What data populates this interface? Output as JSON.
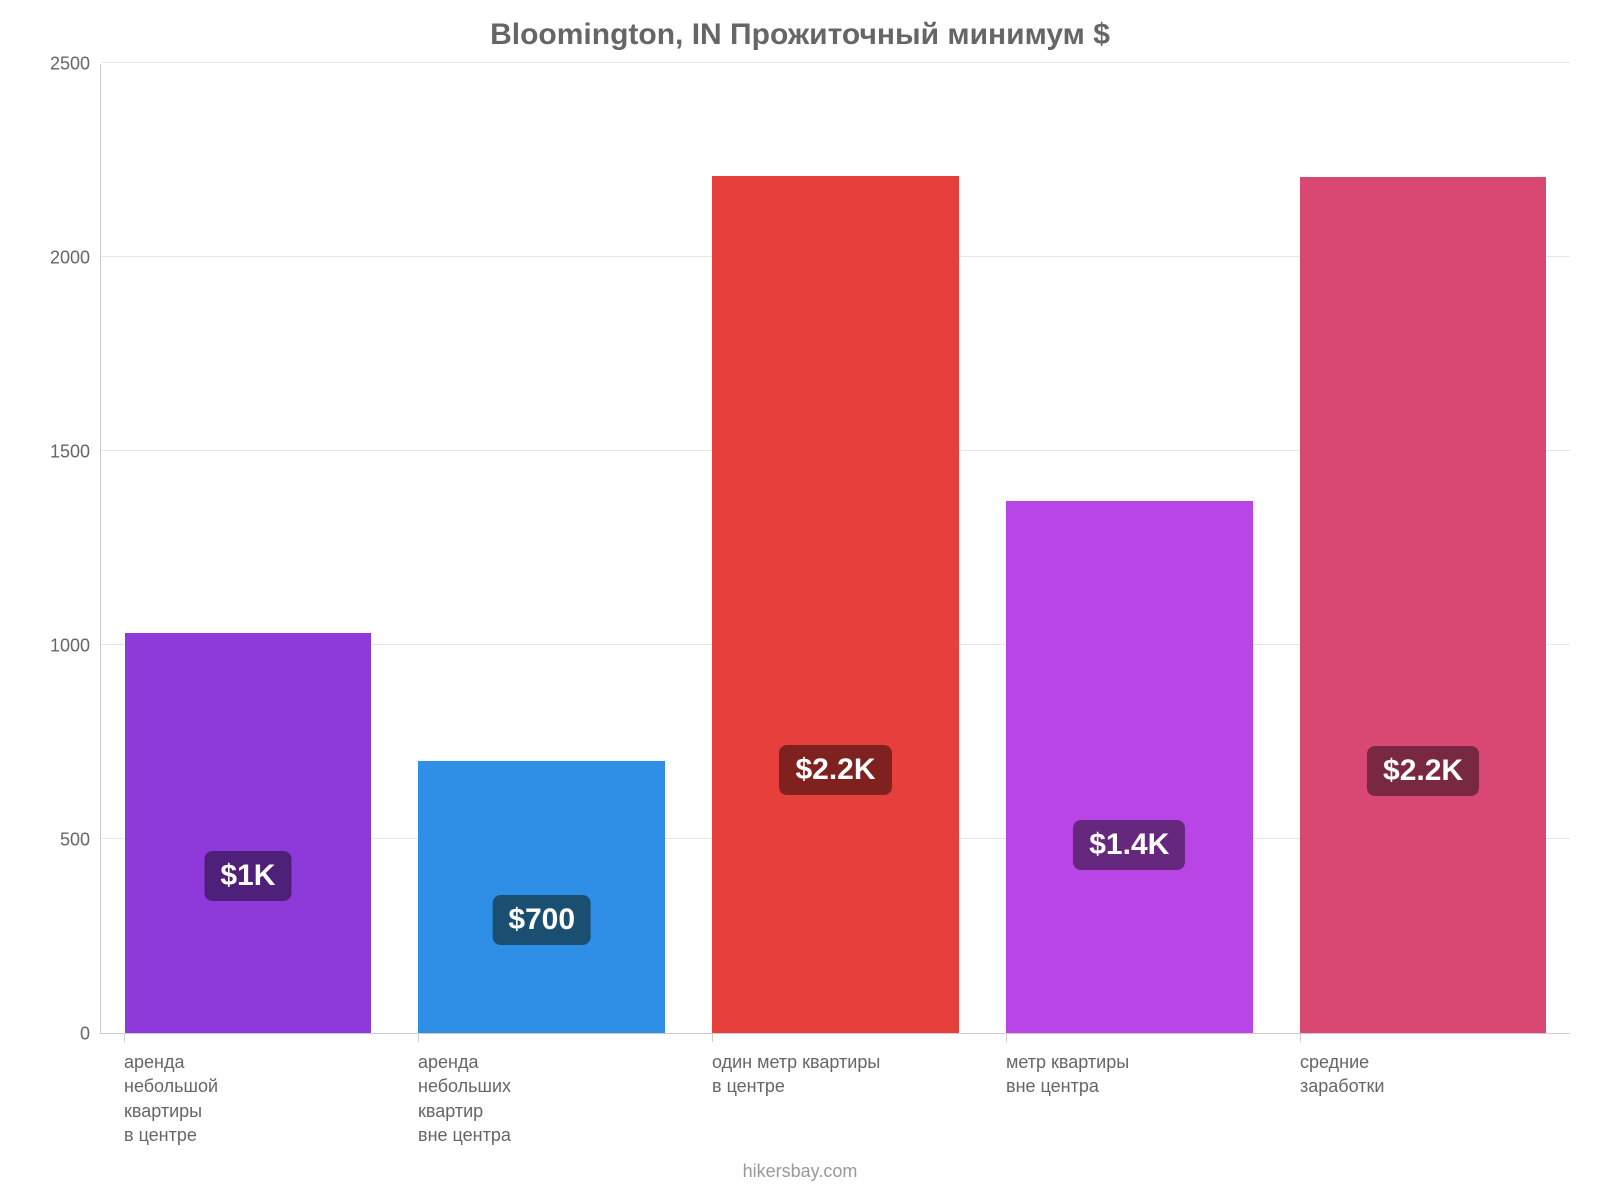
{
  "chart": {
    "type": "bar",
    "title": "Bloomington, IN Прожиточный минимум $",
    "title_color": "#666666",
    "title_fontsize": 30,
    "background_color": "#ffffff",
    "axis_color": "#cccccc",
    "grid_color": "#e6e6e6",
    "tick_label_color": "#666666",
    "tick_label_fontsize": 18,
    "ylim": [
      0,
      2500
    ],
    "ytick_step": 500,
    "yticks": [
      0,
      500,
      1000,
      1500,
      2000,
      2500
    ],
    "bar_width_pct": 84,
    "value_badge_fontsize": 30,
    "value_badge_radius": 8,
    "value_badge_text_color": "#ffffff",
    "categories": [
      "аренда\nнебольшой\nквартиры\nв центре",
      "аренда\nнебольших\nквартир\nвне центра",
      "один метр квартиры\nв центре",
      "метр квартиры\nвне центра",
      "средние\nзаработки"
    ],
    "values": [
      1030,
      700,
      2210,
      1370,
      2205
    ],
    "value_labels": [
      "$1K",
      "$700",
      "$2.2K",
      "$1.4K",
      "$2.2K"
    ],
    "bar_colors": [
      "#8e3adb",
      "#2f8fe7",
      "#e73f3b",
      "#b945e6",
      "#d94872"
    ],
    "badge_colors": [
      "#4e2079",
      "#1b4f72",
      "#7f221f",
      "#66277f",
      "#782840"
    ],
    "footer": "hikersbay.com",
    "footer_color": "#999999",
    "footer_fontsize": 18
  }
}
